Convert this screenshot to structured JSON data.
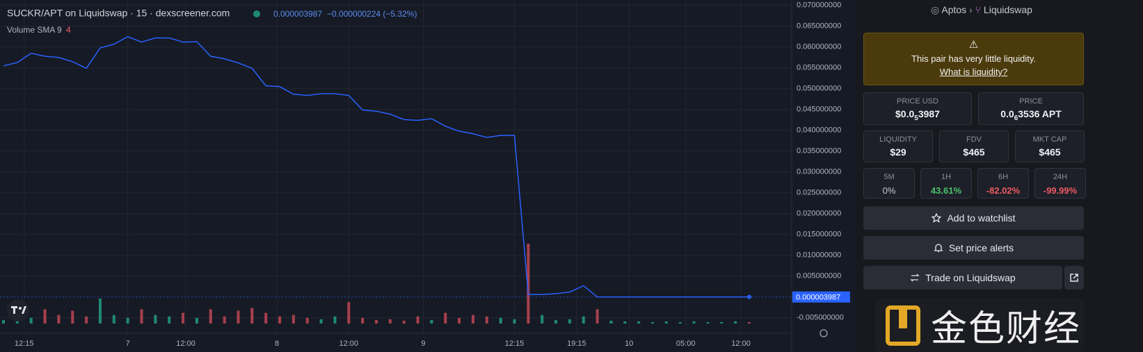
{
  "chart_data": {
    "type": "line",
    "title": "SUCKR/APT on Liquidswap · 15 · dexscreener.com",
    "price_label": "0.000003987",
    "change_label": "−0.000000224 (−5.32%)",
    "volume_label": "Volume SMA 9",
    "volume_sma": 4,
    "color": "#2962ff",
    "up_color": "#1f8a74",
    "down_color": "#a8404d",
    "grid": true,
    "values": [
      0.0555,
      0.0563,
      0.0585,
      0.0578,
      0.0575,
      0.0565,
      0.0549,
      0.0598,
      0.0607,
      0.0625,
      0.0612,
      0.0622,
      0.0622,
      0.0612,
      0.0613,
      0.0578,
      0.0572,
      0.0562,
      0.0549,
      0.0507,
      0.0505,
      0.0487,
      0.0484,
      0.0488,
      0.0488,
      0.0484,
      0.0449,
      0.0446,
      0.0439,
      0.0426,
      0.0424,
      0.0428,
      0.041,
      0.0398,
      0.0392,
      0.0383,
      0.0388,
      0.0388,
      0.0006,
      0.0006,
      0.0008,
      0.0012,
      0.0027,
      4e-06,
      4e-06,
      4e-06,
      4e-06,
      4e-06,
      4e-06,
      4e-06,
      4e-06,
      4e-06,
      4e-06,
      4e-06,
      3.987e-06
    ],
    "volume": [
      5,
      15,
      8,
      20,
      12,
      18,
      10,
      35,
      12,
      8,
      20,
      12,
      10,
      15,
      8,
      20,
      10,
      18,
      22,
      15,
      10,
      12,
      8,
      6,
      10,
      30,
      8,
      5,
      6,
      4,
      10,
      5,
      15,
      8,
      12,
      10,
      8,
      6,
      112,
      12,
      5,
      6,
      10,
      20,
      4,
      3,
      3,
      2,
      3,
      2,
      3,
      2,
      2,
      3,
      2
    ],
    "ylim": [
      -0.0087,
      0.0713
    ],
    "yticks": [
      {
        "value": 0.07,
        "label": "0.070000000"
      },
      {
        "value": 0.065,
        "label": "0.065000000"
      },
      {
        "value": 0.06,
        "label": "0.060000000"
      },
      {
        "value": 0.055,
        "label": "0.055000000"
      },
      {
        "value": 0.05,
        "label": "0.050000000"
      },
      {
        "value": 0.045,
        "label": "0.045000000"
      },
      {
        "value": 0.04,
        "label": "0.040000000"
      },
      {
        "value": 0.035,
        "label": "0.035000000"
      },
      {
        "value": 0.03,
        "label": "0.030000000"
      },
      {
        "value": 0.025,
        "label": "0.025000000"
      },
      {
        "value": 0.02,
        "label": "0.020000000"
      },
      {
        "value": 0.015,
        "label": "0.015000000"
      },
      {
        "value": 0.01,
        "label": "0.010000000"
      },
      {
        "value": 0.005,
        "label": "0.005000000"
      },
      {
        "value": -0.005,
        "label": "-0.005000000"
      }
    ],
    "xticks": [
      {
        "value": 1.5,
        "label": "12:15"
      },
      {
        "value": 9,
        "label": "7"
      },
      {
        "value": 13.2,
        "label": "12:00"
      },
      {
        "value": 19.8,
        "label": "8"
      },
      {
        "value": 25,
        "label": "12:00"
      },
      {
        "value": 30.4,
        "label": "9"
      },
      {
        "value": 37,
        "label": "12:15"
      },
      {
        "value": 41.5,
        "label": "19:15"
      },
      {
        "value": 45.3,
        "label": "10"
      },
      {
        "value": 49.4,
        "label": "05:00"
      },
      {
        "value": 53.4,
        "label": "12:00"
      }
    ]
  },
  "sidebar": {
    "breadcrumb": {
      "chain": "Aptos",
      "dex": "Liquidswap"
    },
    "warning": {
      "text": "This pair has very little liquidity.",
      "link": "What is liquidity?"
    },
    "price_usd": {
      "label": "PRICE USD",
      "prefix": "$0.0",
      "zeros": "5",
      "digits": "3987"
    },
    "price": {
      "label": "PRICE",
      "prefix": "0.0",
      "zeros": "6",
      "digits": "3536 APT"
    },
    "stats": [
      {
        "label": "LIQUIDITY",
        "value": "$29"
      },
      {
        "label": "FDV",
        "value": "$465"
      },
      {
        "label": "MKT CAP",
        "value": "$465"
      }
    ],
    "changes": [
      {
        "label": "5M",
        "value": "0%"
      },
      {
        "label": "1H",
        "value": "43.61%"
      },
      {
        "label": "6H",
        "value": "-82.02%"
      },
      {
        "label": "24H",
        "value": "-99.99%"
      }
    ],
    "buttons": [
      "Add to watchlist",
      "Set price alerts",
      "Trade on Liquidswap"
    ],
    "watermark": "金色财经"
  }
}
